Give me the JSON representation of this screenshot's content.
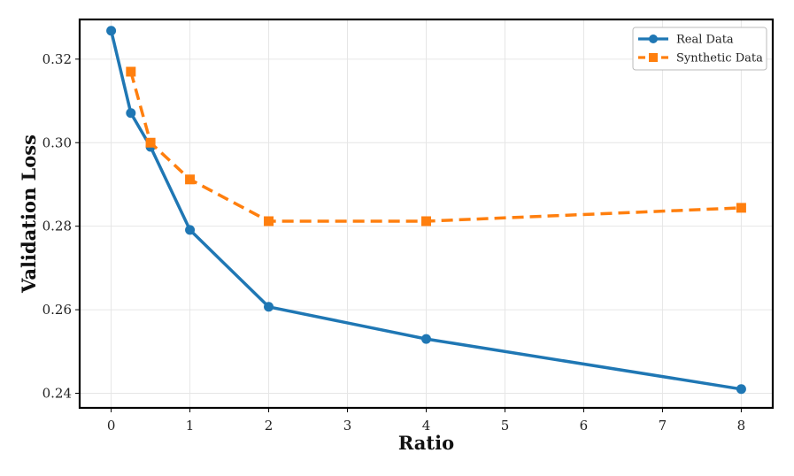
{
  "chart_data": {
    "type": "line",
    "xlabel": "Ratio",
    "ylabel": "Validation Loss",
    "xlim": [
      -0.4,
      8.4
    ],
    "ylim": [
      0.2365,
      0.3295
    ],
    "x_ticks": [
      0,
      1,
      2,
      3,
      4,
      5,
      6,
      7,
      8
    ],
    "y_ticks": [
      0.24,
      0.26,
      0.28,
      0.3,
      0.32
    ],
    "y_tick_labels": [
      "0.24",
      "0.26",
      "0.28",
      "0.30",
      "0.32"
    ],
    "grid": true,
    "legend_position": "top-right",
    "series": [
      {
        "name": "Real Data",
        "color": "#1f77b4",
        "line_style": "solid",
        "marker": "circle",
        "x": [
          0,
          0.25,
          0.5,
          1,
          2,
          4,
          8
        ],
        "y": [
          0.3268,
          0.3071,
          0.299,
          0.2791,
          0.2607,
          0.253,
          0.241
        ]
      },
      {
        "name": "Synthetic Data",
        "color": "#ff7f0e",
        "line_style": "dashed",
        "marker": "square",
        "x": [
          0.25,
          0.5,
          1,
          2,
          4,
          8
        ],
        "y": [
          0.317,
          0.3,
          0.2912,
          0.2812,
          0.2812,
          0.2844
        ]
      }
    ]
  }
}
